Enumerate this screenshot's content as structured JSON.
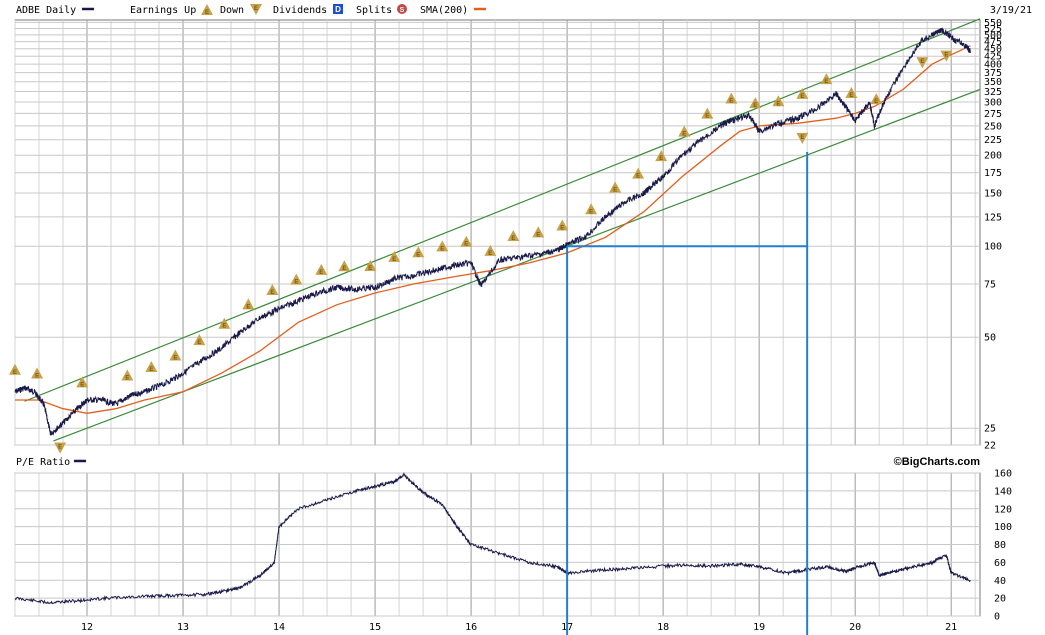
{
  "chart_data": [
    {
      "type": "line",
      "panel": "price",
      "symbol_label": "ADBE Daily",
      "date_label": "3/19/21",
      "scale": "log",
      "ylim": [
        22,
        560
      ],
      "xlim": [
        2011.25,
        2021.3
      ],
      "y_ticks": [
        "550",
        "525",
        "500",
        "475",
        "450",
        "425",
        "400",
        "375",
        "350",
        "325",
        "300",
        "275",
        "250",
        "225",
        "200",
        "175",
        "150",
        "125",
        "100",
        "75",
        "50",
        "25",
        "22"
      ],
      "x_ticks": [
        "12",
        "13",
        "14",
        "15",
        "16",
        "17",
        "18",
        "19",
        "20",
        "21"
      ],
      "grid": true,
      "legend": [
        {
          "label": "Earnings Up",
          "marker": "triangle-up",
          "color": "#c8a24a"
        },
        {
          "label": "Down",
          "marker": "triangle-down",
          "color": "#c8a24a"
        },
        {
          "label": "Dividends",
          "marker": "D",
          "color": "#1f4fcc"
        },
        {
          "label": "Splits",
          "marker": "S",
          "color": "#c04848"
        },
        {
          "label": "SMA(200)",
          "color": "#e0601f"
        }
      ],
      "earnings_up_glyph": "E",
      "earnings_down_glyph": "E",
      "dividends_glyph": "D",
      "splits_glyph": "S",
      "series": [
        {
          "color": "#1a1a4a",
          "x": [
            2011.25,
            2011.35,
            2011.45,
            2011.55,
            2011.62,
            2011.75,
            2011.9,
            2012.0,
            2012.15,
            2012.3,
            2012.45,
            2012.6,
            2012.8,
            2013.0,
            2013.2,
            2013.4,
            2013.6,
            2013.8,
            2014.0,
            2014.2,
            2014.4,
            2014.6,
            2014.8,
            2015.0,
            2015.2,
            2015.4,
            2015.6,
            2015.8,
            2016.0,
            2016.1,
            2016.3,
            2016.5,
            2016.7,
            2016.9,
            2017.0,
            2017.2,
            2017.4,
            2017.6,
            2017.8,
            2017.85,
            2018.0,
            2018.2,
            2018.4,
            2018.6,
            2018.7,
            2018.9,
            2019.0,
            2019.2,
            2019.4,
            2019.6,
            2019.8,
            2019.9,
            2020.0,
            2020.15,
            2020.2,
            2020.3,
            2020.5,
            2020.7,
            2020.9,
            2021.0,
            2021.15,
            2021.2
          ],
          "y": [
            33,
            34,
            33,
            30,
            24,
            26,
            29,
            31,
            31,
            30,
            32,
            33,
            35,
            38,
            42,
            46,
            52,
            58,
            62,
            66,
            70,
            73,
            72,
            73,
            78,
            80,
            83,
            86,
            88,
            74,
            90,
            92,
            94,
            97,
            101,
            108,
            125,
            140,
            150,
            155,
            170,
            200,
            225,
            250,
            260,
            270,
            240,
            255,
            265,
            285,
            320,
            290,
            260,
            300,
            250,
            300,
            390,
            480,
            520,
            490,
            460,
            440
          ]
        },
        {
          "name": "SMA(200)",
          "color": "#e0601f",
          "x": [
            2011.25,
            2011.5,
            2011.75,
            2012.0,
            2012.3,
            2012.6,
            2013.0,
            2013.4,
            2013.8,
            2014.2,
            2014.6,
            2015.0,
            2015.4,
            2015.8,
            2016.2,
            2016.6,
            2017.0,
            2017.4,
            2017.8,
            2018.2,
            2018.6,
            2018.8,
            2019.0,
            2019.4,
            2019.8,
            2020.0,
            2020.2,
            2020.5,
            2020.8,
            2021.0,
            2021.2
          ],
          "y": [
            31,
            31,
            29,
            28,
            29,
            31,
            33,
            38,
            45,
            56,
            64,
            70,
            75,
            79,
            83,
            88,
            95,
            107,
            130,
            170,
            215,
            240,
            250,
            255,
            265,
            275,
            290,
            330,
            400,
            430,
            460
          ]
        }
      ],
      "earnings_up_dates": [
        2011.25,
        2011.48,
        2011.95,
        2012.42,
        2012.67,
        2012.92,
        2013.17,
        2013.43,
        2013.68,
        2013.93,
        2014.18,
        2014.44,
        2014.68,
        2014.95,
        2015.2,
        2015.45,
        2015.7,
        2015.95,
        2016.2,
        2016.44,
        2016.7,
        2016.95,
        2017.25,
        2017.5,
        2017.74,
        2017.98,
        2018.22,
        2018.46,
        2018.71,
        2018.96,
        2019.2,
        2019.45,
        2019.7,
        2019.96,
        2020.22
      ],
      "earnings_down_dates": [
        2011.72,
        2019.45,
        2020.7,
        2020.95
      ],
      "trendlines": [
        {
          "color": "#3a8a3a",
          "from": [
            2011.35,
            30.7
          ],
          "to": [
            2021.3,
            565
          ]
        },
        {
          "color": "#3a8a3a",
          "from": [
            2011.65,
            22.7
          ],
          "to": [
            2021.3,
            330
          ]
        }
      ],
      "annotations": [
        {
          "color": "#1f7fd0",
          "type": "vertical",
          "x": 2017.0,
          "from_y": 100
        },
        {
          "color": "#1f7fd0",
          "type": "horizontal",
          "y": 100,
          "from_x": 2017.0,
          "to_x": 2019.5
        },
        {
          "color": "#1f7fd0",
          "type": "vertical",
          "x": 2019.5,
          "from_y": 205
        }
      ]
    },
    {
      "type": "line",
      "panel": "pe",
      "title": "P/E Ratio",
      "brand": "©BigCharts.com",
      "ylim": [
        0,
        160
      ],
      "y_ticks": [
        160,
        140,
        120,
        100,
        80,
        60,
        40,
        20,
        0
      ],
      "grid": true,
      "series": [
        {
          "color": "#1a1a4a",
          "x": [
            2011.25,
            2011.6,
            2011.9,
            2012.2,
            2012.6,
            2012.9,
            2013.2,
            2013.4,
            2013.6,
            2013.8,
            2013.95,
            2014.0,
            2014.2,
            2014.5,
            2014.8,
            2015.0,
            2015.2,
            2015.3,
            2015.5,
            2015.7,
            2015.85,
            2016.0,
            2016.3,
            2016.6,
            2016.9,
            2017.0,
            2017.3,
            2017.6,
            2017.9,
            2018.2,
            2018.5,
            2018.8,
            2019.0,
            2019.3,
            2019.5,
            2019.7,
            2019.9,
            2020.0,
            2020.2,
            2020.25,
            2020.4,
            2020.6,
            2020.8,
            2020.95,
            2021.0,
            2021.2
          ],
          "y": [
            20,
            15,
            17,
            20,
            22,
            23,
            24,
            27,
            32,
            45,
            60,
            100,
            120,
            130,
            140,
            145,
            150,
            158,
            138,
            125,
            100,
            80,
            70,
            60,
            55,
            48,
            51,
            53,
            55,
            57,
            56,
            58,
            55,
            48,
            52,
            55,
            50,
            54,
            60,
            45,
            50,
            55,
            60,
            68,
            48,
            40
          ]
        }
      ]
    }
  ]
}
